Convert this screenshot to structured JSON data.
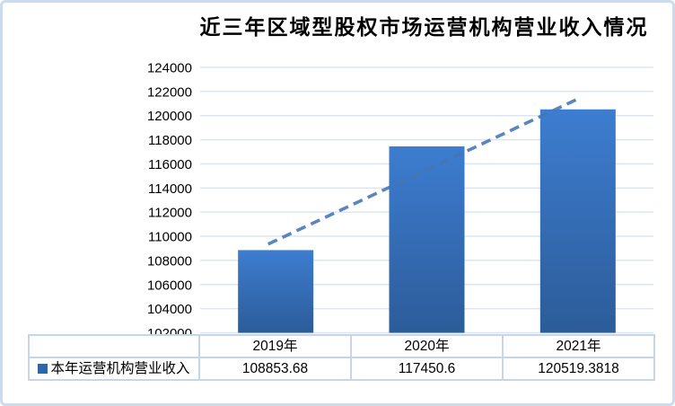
{
  "page": {
    "border_color": "#ccdcee"
  },
  "chart_data": {
    "type": "bar",
    "title": "近三年区域型股权市场运营机构营业收入情况",
    "categories": [
      "2019年",
      "2020年",
      "2021年"
    ],
    "series": [
      {
        "name": "本年运营机构营业收入",
        "values": [
          108853.68,
          117450.6,
          120519.3818
        ]
      }
    ],
    "table_values": [
      "108853.68",
      "117450.6",
      "120519.3818"
    ],
    "xlabel": "",
    "ylabel": "",
    "ylim": [
      102000,
      124000
    ],
    "ytick_step": 2000,
    "ytick_labels": [
      "102000",
      "104000",
      "106000",
      "108000",
      "110000",
      "112000",
      "114000",
      "116000",
      "118000",
      "120000",
      "122000",
      "124000"
    ],
    "grid": true,
    "legend_position": "data-table-left",
    "trendline": {
      "style": "dashed",
      "start_cat": -0.05,
      "start_value": 109350,
      "end_cat": 2.02,
      "end_value": 121500
    },
    "colors": {
      "bar_gradient_top": "#3d7dd0",
      "bar_gradient_bottom": "#2c5c99",
      "trendline": "#4576b4",
      "gridline": "#dce6f2",
      "axis_text": "#000000",
      "table_border": "#c6d6ea",
      "legend_marker": "#2d67ab",
      "page_border": "#ccdcee"
    }
  }
}
